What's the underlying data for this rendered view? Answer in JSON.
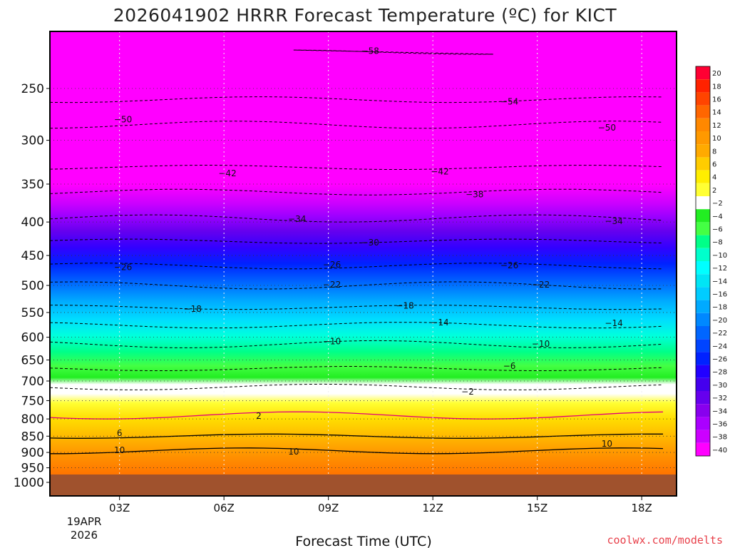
{
  "chart_data": {
    "type": "heatmap",
    "title": "2026041902 HRRR Forecast Temperature (ºC) for KICT",
    "xlabel": "Forecast Time (UTC)",
    "ylabel": "",
    "credit": "coolwx.com/modelts",
    "x_ticks": [
      "03Z",
      "06Z",
      "09Z",
      "12Z",
      "15Z",
      "18Z"
    ],
    "x_date_label": [
      "19APR",
      "2026"
    ],
    "y_ticks": [
      250,
      300,
      350,
      400,
      450,
      500,
      550,
      600,
      650,
      700,
      750,
      800,
      850,
      900,
      950,
      1000
    ],
    "y_scale": "log-pressure (inverted)",
    "ylim": [
      1000,
      200
    ],
    "colorbar": {
      "labels": [
        20,
        18,
        16,
        14,
        12,
        10,
        8,
        6,
        4,
        2,
        -2,
        -4,
        -6,
        -8,
        -10,
        -12,
        -14,
        -16,
        -18,
        -20,
        -22,
        -24,
        -26,
        -28,
        -30,
        -32,
        -34,
        -36,
        -38,
        -40
      ],
      "colors": [
        "#ff0033",
        "#ff2200",
        "#ff4400",
        "#ff6600",
        "#ff8800",
        "#ff9900",
        "#ffaa00",
        "#ffcc00",
        "#ffee00",
        "#ffff33",
        "#ffffff",
        "#22ee22",
        "#44ff44",
        "#00ff88",
        "#00ffcc",
        "#00ffff",
        "#00e5f5",
        "#00ccff",
        "#00aaff",
        "#0088ff",
        "#0066ff",
        "#0044ff",
        "#0022ff",
        "#2200ff",
        "#4400ee",
        "#6600ee",
        "#8800ee",
        "#aa00ff",
        "#cc00ff",
        "#ff00ff"
      ]
    },
    "isotherms": [
      {
        "value": -58,
        "pressure_mb": 220,
        "time": "08Z-14Z"
      },
      {
        "value": -54,
        "pressure_mb": 260,
        "time": "all"
      },
      {
        "value": -50,
        "pressure_mb": 284,
        "time": "all"
      },
      {
        "value": -42,
        "pressure_mb": 330,
        "time": "all"
      },
      {
        "value": -38,
        "pressure_mb": 360,
        "time": "all"
      },
      {
        "value": -34,
        "pressure_mb": 395,
        "time": "all"
      },
      {
        "value": -30,
        "pressure_mb": 428,
        "time": "all"
      },
      {
        "value": -26,
        "pressure_mb": 467,
        "time": "all"
      },
      {
        "value": -22,
        "pressure_mb": 500,
        "time": "all"
      },
      {
        "value": -18,
        "pressure_mb": 540,
        "time": "all"
      },
      {
        "value": -14,
        "pressure_mb": 575,
        "time": "all"
      },
      {
        "value": -10,
        "pressure_mb": 615,
        "time": "all"
      },
      {
        "value": -6,
        "pressure_mb": 670,
        "time": "all"
      },
      {
        "value": -2,
        "pressure_mb": 715,
        "time": "all"
      },
      {
        "value": 2,
        "pressure_mb": 790,
        "time": "all"
      },
      {
        "value": 6,
        "pressure_mb": 850,
        "time": "all"
      },
      {
        "value": 10,
        "pressure_mb": 895,
        "time": "all"
      }
    ],
    "contour_labels": [
      {
        "text": "-58",
        "time_h": 10.2,
        "p": 219
      },
      {
        "text": "-54",
        "time_h": 14.2,
        "p": 262
      },
      {
        "text": "-50",
        "time_h": 3.1,
        "p": 279
      },
      {
        "text": "-50",
        "time_h": 17.0,
        "p": 287
      },
      {
        "text": "-42",
        "time_h": 6.1,
        "p": 337
      },
      {
        "text": "-42",
        "time_h": 12.2,
        "p": 335
      },
      {
        "text": "-38",
        "time_h": 13.2,
        "p": 363
      },
      {
        "text": "-34",
        "time_h": 8.1,
        "p": 396
      },
      {
        "text": "-34",
        "time_h": 17.2,
        "p": 399
      },
      {
        "text": "-30",
        "time_h": 10.2,
        "p": 430
      },
      {
        "text": "-26",
        "time_h": 3.1,
        "p": 469
      },
      {
        "text": "-26",
        "time_h": 9.1,
        "p": 465
      },
      {
        "text": "-26",
        "time_h": 14.2,
        "p": 466
      },
      {
        "text": "-22",
        "time_h": 9.1,
        "p": 499
      },
      {
        "text": "-22",
        "time_h": 15.1,
        "p": 499
      },
      {
        "text": "-18",
        "time_h": 5.1,
        "p": 543
      },
      {
        "text": "-18",
        "time_h": 11.2,
        "p": 537
      },
      {
        "text": "-14",
        "time_h": 12.2,
        "p": 570
      },
      {
        "text": "-14",
        "time_h": 17.2,
        "p": 571
      },
      {
        "text": "-10",
        "time_h": 9.1,
        "p": 609
      },
      {
        "text": "-10",
        "time_h": 15.1,
        "p": 614
      },
      {
        "text": "-6",
        "time_h": 14.2,
        "p": 664
      },
      {
        "text": "-2",
        "time_h": 13.0,
        "p": 727
      },
      {
        "text": "2",
        "time_h": 7.0,
        "p": 792
      },
      {
        "text": "6",
        "time_h": 3.0,
        "p": 841
      },
      {
        "text": "10",
        "time_h": 3.0,
        "p": 893
      },
      {
        "text": "10",
        "time_h": 8.0,
        "p": 898
      },
      {
        "text": "10",
        "time_h": 17.0,
        "p": 873
      }
    ]
  }
}
